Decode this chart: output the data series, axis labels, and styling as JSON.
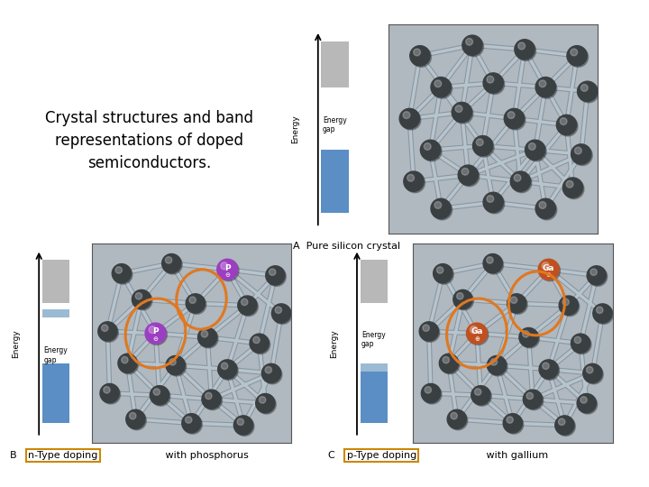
{
  "title_line1": "Crystal structures and band",
  "title_line2": "representations of doped",
  "title_line3": "semiconductors.",
  "bg_color": "#ffffff",
  "panel_A_label": "A  Pure silicon crystal",
  "panel_B_label_prefix": "B",
  "panel_B_box_text": "n-Type doping",
  "panel_B_label_suffix": " with phosphorus",
  "panel_C_label_prefix": "C",
  "panel_C_box_text": "p-Type doping",
  "panel_C_label_suffix": " with gallium",
  "energy_label": "Energy",
  "energy_gap_label": "Energy\ngap",
  "gray_block_color": "#b8b8b8",
  "blue_block_color": "#5b8ec4",
  "blue_light_color": "#8aaecc",
  "crystal_bg": "#b0b8c0",
  "bond_color": "#9aa5ae",
  "si_color": "#3a3f42",
  "si_highlight": "#6a7075",
  "phosphorus_color": "#9b3fc0",
  "gallium_color": "#c05020",
  "orange_circle_color": "#e07820",
  "highlight_box_color": "#cc8800",
  "label_font_size": 8,
  "title_font_size": 12
}
